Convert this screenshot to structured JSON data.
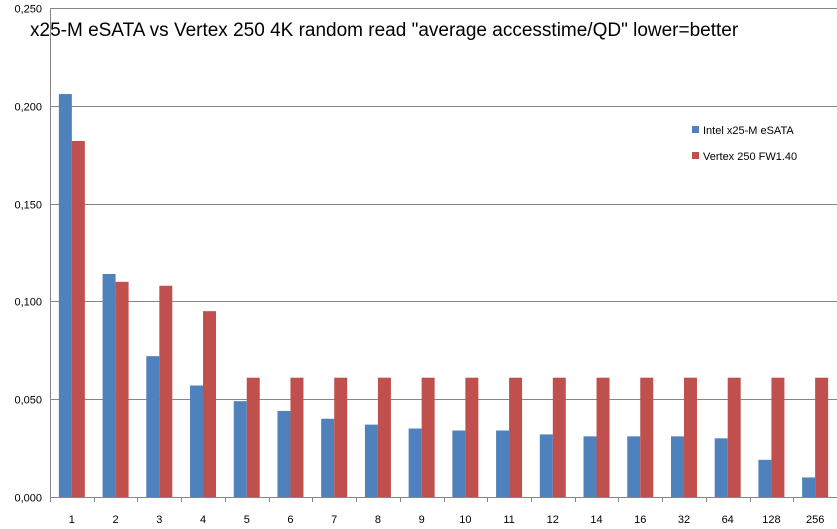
{
  "chart_data": {
    "type": "bar",
    "title": "x25-M eSATA vs Vertex 250 4K random read \"average accesstime/QD\"  lower=better",
    "xlabel": "",
    "ylabel": "",
    "categories": [
      "1",
      "2",
      "3",
      "4",
      "5",
      "6",
      "7",
      "8",
      "9",
      "10",
      "11",
      "12",
      "14",
      "16",
      "32",
      "64",
      "128",
      "256"
    ],
    "series": [
      {
        "name": "Intel x25-M eSATA",
        "color": "#4f81bd",
        "values": [
          0.206,
          0.114,
          0.072,
          0.057,
          0.049,
          0.044,
          0.04,
          0.037,
          0.035,
          0.034,
          0.034,
          0.032,
          0.031,
          0.031,
          0.031,
          0.03,
          0.019,
          0.01
        ]
      },
      {
        "name": "Vertex 250 FW1.40",
        "color": "#c0504d",
        "values": [
          0.182,
          0.11,
          0.108,
          0.095,
          0.061,
          0.061,
          0.061,
          0.061,
          0.061,
          0.061,
          0.061,
          0.061,
          0.061,
          0.061,
          0.061,
          0.061,
          0.061,
          0.061
        ]
      }
    ],
    "ylim": [
      0,
      0.25
    ],
    "yticks": [
      0,
      0.05,
      0.1,
      0.15,
      0.2,
      0.25
    ],
    "ytick_labels": [
      "0,000",
      "0,050",
      "0,100",
      "0,150",
      "0,200",
      "0,250"
    ],
    "grid": true,
    "legend_position": "top-right"
  }
}
